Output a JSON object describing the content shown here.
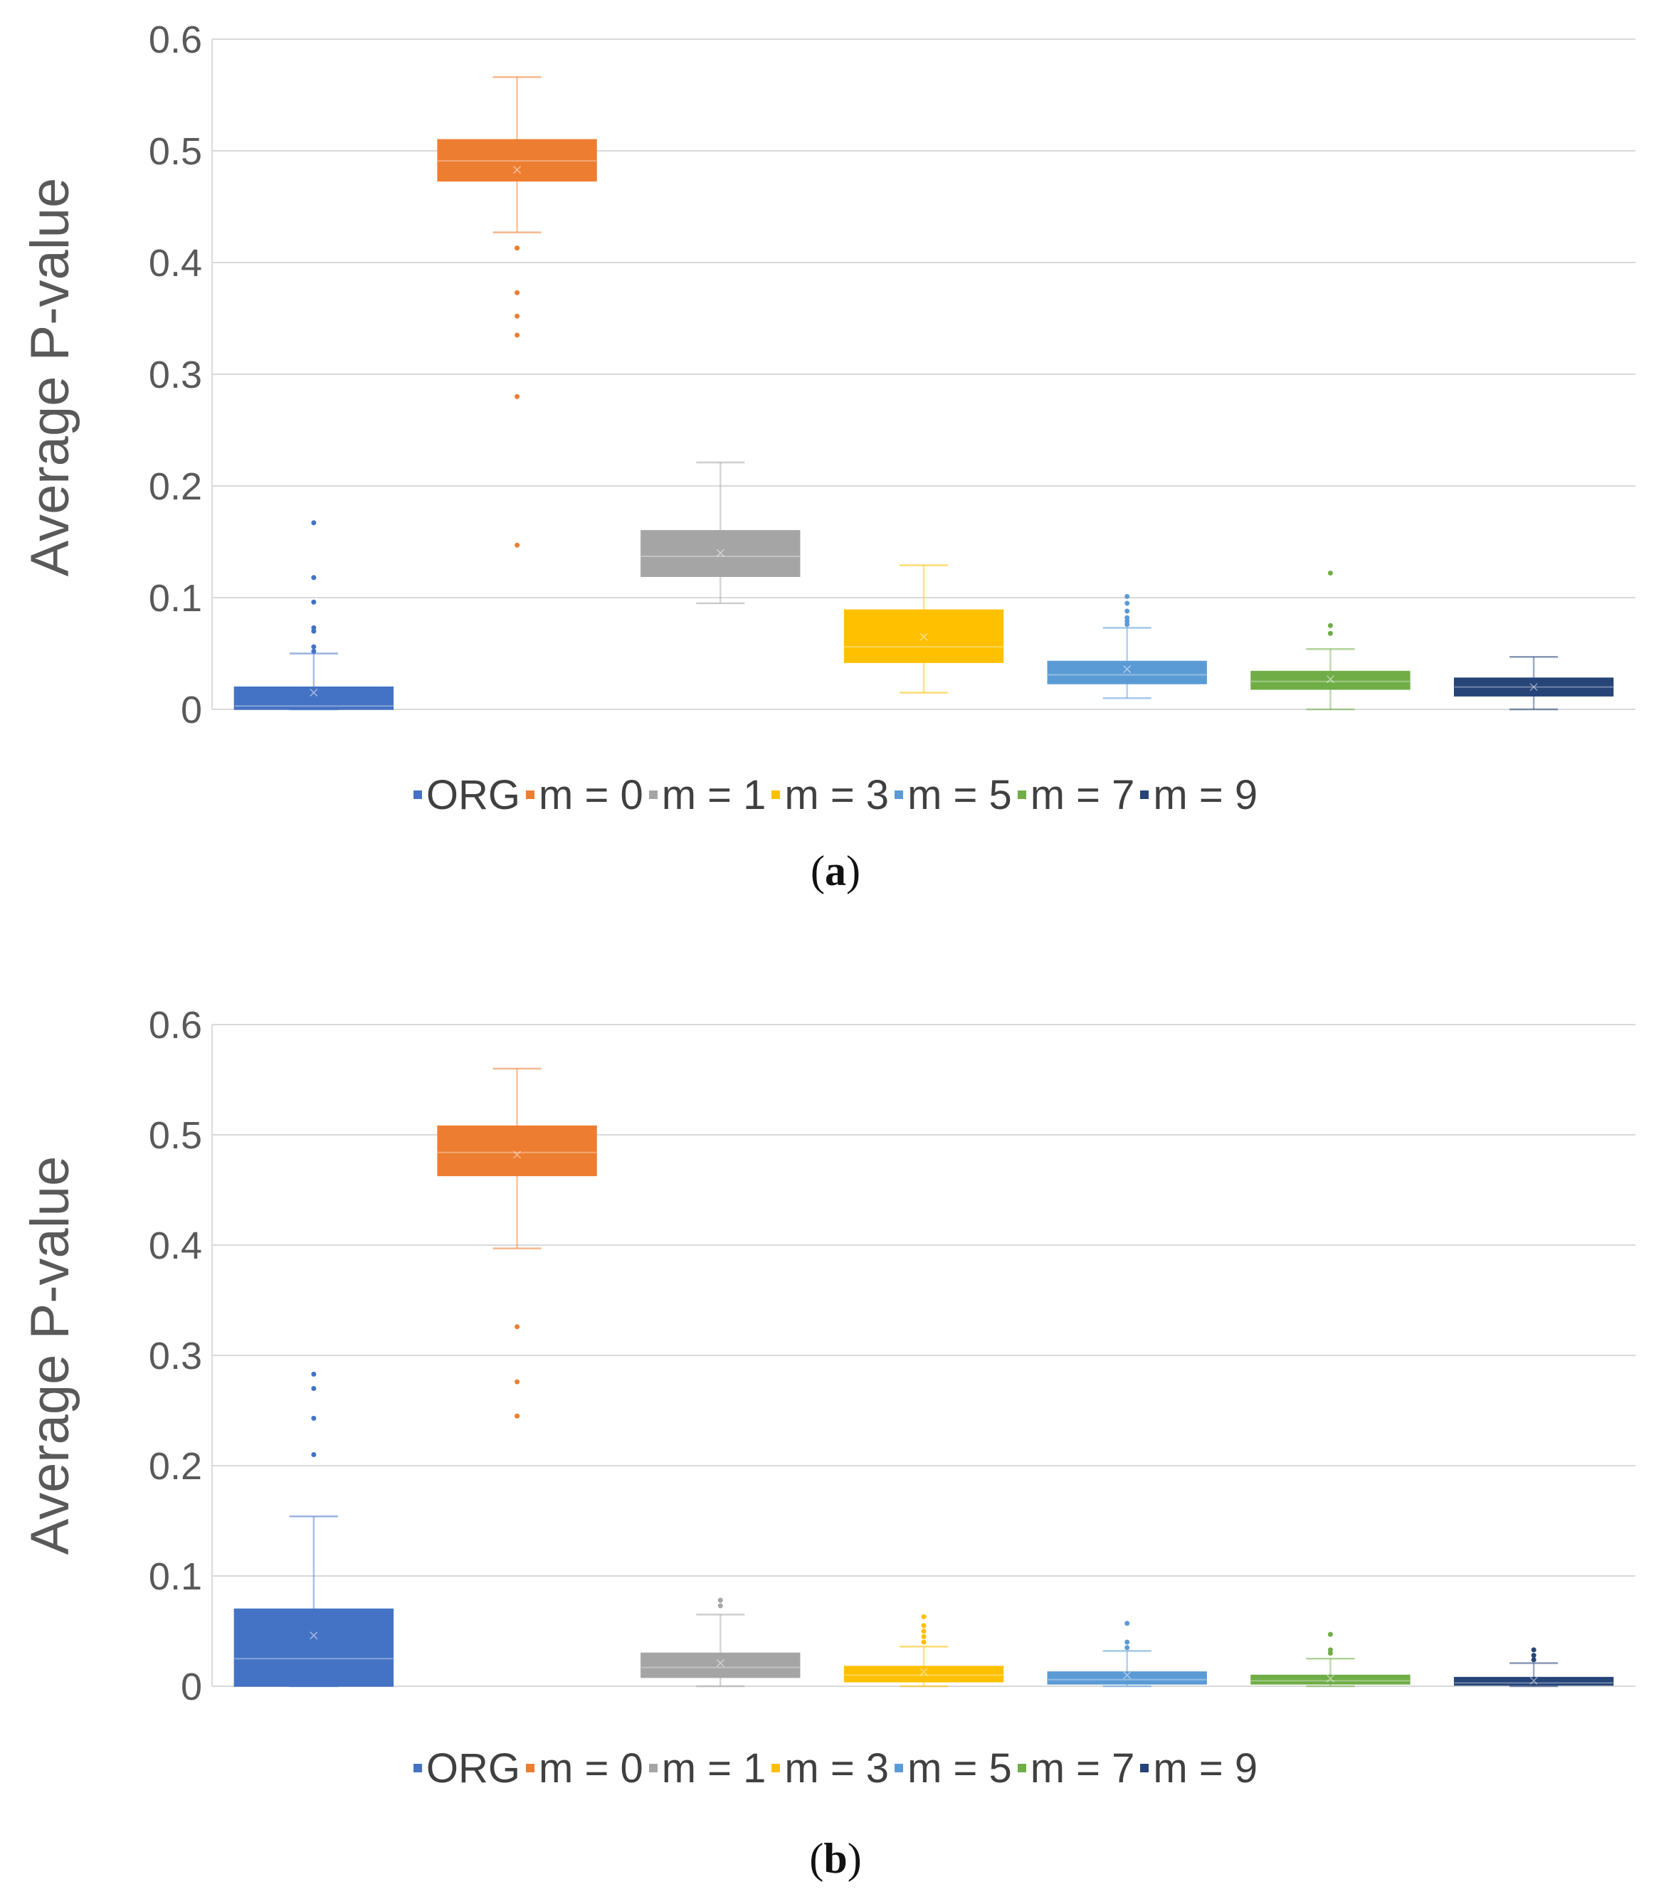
{
  "chart_data": [
    {
      "type": "box",
      "panel_label": "a",
      "ylabel": "Average P-value",
      "xlabel": "",
      "ylim": [
        0,
        0.6
      ],
      "yticks": [
        "0",
        "0.1",
        "0.2",
        "0.3",
        "0.4",
        "0.5",
        "0.6"
      ],
      "legend_position": "bottom",
      "series": [
        {
          "name": "ORG",
          "color": "#4472C4",
          "min": 0.0,
          "q1": 0.0,
          "median": 0.003,
          "q3": 0.02,
          "max": 0.05,
          "mean": 0.015,
          "outliers": [
            0.052,
            0.056,
            0.07,
            0.073,
            0.096,
            0.118,
            0.167
          ]
        },
        {
          "name": "m = 0",
          "color": "#ED7D31",
          "min": 0.427,
          "q1": 0.473,
          "median": 0.491,
          "q3": 0.51,
          "max": 0.566,
          "mean": 0.483,
          "outliers": [
            0.147,
            0.28,
            0.335,
            0.352,
            0.373,
            0.413
          ]
        },
        {
          "name": "m = 1",
          "color": "#A5A5A5",
          "min": 0.095,
          "q1": 0.119,
          "median": 0.137,
          "q3": 0.16,
          "max": 0.221,
          "mean": 0.14,
          "outliers": []
        },
        {
          "name": "m = 3",
          "color": "#FFC000",
          "min": 0.015,
          "q1": 0.042,
          "median": 0.056,
          "q3": 0.089,
          "max": 0.129,
          "mean": 0.065,
          "outliers": []
        },
        {
          "name": "m = 5",
          "color": "#5B9BD5",
          "min": 0.01,
          "q1": 0.023,
          "median": 0.031,
          "q3": 0.043,
          "max": 0.073,
          "mean": 0.036,
          "outliers": [
            0.076,
            0.079,
            0.082,
            0.088,
            0.095,
            0.101
          ]
        },
        {
          "name": "m = 7",
          "color": "#70AD47",
          "min": 0.0,
          "q1": 0.018,
          "median": 0.025,
          "q3": 0.034,
          "max": 0.054,
          "mean": 0.027,
          "outliers": [
            0.068,
            0.075,
            0.122
          ]
        },
        {
          "name": "m = 9",
          "color": "#264478",
          "min": 0.0,
          "q1": 0.012,
          "median": 0.02,
          "q3": 0.028,
          "max": 0.047,
          "mean": 0.02,
          "outliers": []
        }
      ]
    },
    {
      "type": "box",
      "panel_label": "b",
      "ylabel": "Average P-value",
      "xlabel": "",
      "ylim": [
        0,
        0.6
      ],
      "yticks": [
        "0",
        "0.1",
        "0.2",
        "0.3",
        "0.4",
        "0.5",
        "0.6"
      ],
      "legend_position": "bottom",
      "series": [
        {
          "name": "ORG",
          "color": "#4472C4",
          "min": 0.0,
          "q1": 0.0,
          "median": 0.025,
          "q3": 0.07,
          "max": 0.154,
          "mean": 0.046,
          "outliers": [
            0.21,
            0.243,
            0.27,
            0.283
          ]
        },
        {
          "name": "m = 0",
          "color": "#ED7D31",
          "min": 0.397,
          "q1": 0.463,
          "median": 0.484,
          "q3": 0.508,
          "max": 0.56,
          "mean": 0.482,
          "outliers": [
            0.245,
            0.276,
            0.326
          ]
        },
        {
          "name": "m = 1",
          "color": "#A5A5A5",
          "min": 0.0,
          "q1": 0.008,
          "median": 0.017,
          "q3": 0.03,
          "max": 0.065,
          "mean": 0.021,
          "outliers": [
            0.073,
            0.078
          ]
        },
        {
          "name": "m = 3",
          "color": "#FFC000",
          "min": 0.0,
          "q1": 0.004,
          "median": 0.01,
          "q3": 0.018,
          "max": 0.036,
          "mean": 0.013,
          "outliers": [
            0.04,
            0.045,
            0.05,
            0.055,
            0.063
          ]
        },
        {
          "name": "m = 5",
          "color": "#5B9BD5",
          "min": 0.0,
          "q1": 0.002,
          "median": 0.006,
          "q3": 0.013,
          "max": 0.032,
          "mean": 0.01,
          "outliers": [
            0.035,
            0.04,
            0.057
          ]
        },
        {
          "name": "m = 7",
          "color": "#70AD47",
          "min": 0.0,
          "q1": 0.002,
          "median": 0.005,
          "q3": 0.01,
          "max": 0.025,
          "mean": 0.007,
          "outliers": [
            0.03,
            0.033,
            0.047
          ]
        },
        {
          "name": "m = 9",
          "color": "#264478",
          "min": 0.0,
          "q1": 0.001,
          "median": 0.003,
          "q3": 0.008,
          "max": 0.021,
          "mean": 0.005,
          "outliers": [
            0.024,
            0.028,
            0.033
          ]
        }
      ]
    }
  ]
}
